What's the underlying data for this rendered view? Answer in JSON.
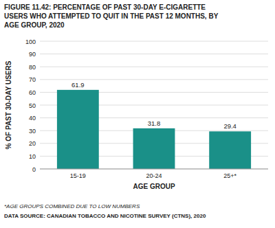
{
  "chart_data": {
    "type": "bar",
    "title": "FIGURE 11.42: PERCENTAGE OF PAST 30-DAY E-CIGARETTE\nUSERS WHO ATTEMPTED TO QUIT IN THE PAST 12 MONTHS, BY\nAGE GROUP, 2020",
    "categories": [
      "15-19",
      "20-24",
      "25+*"
    ],
    "values": [
      61.9,
      31.8,
      29.4
    ],
    "color": "#1a9088",
    "xlabel": "AGE GROUP",
    "ylabel": "% OF PAST 30-DAY USERS",
    "ylim": [
      0,
      100
    ],
    "yticks": [
      0,
      10,
      20,
      30,
      40,
      50,
      60,
      70,
      80,
      90,
      100
    ],
    "grid": true,
    "data_labels": true,
    "annotations": [
      "*AGE GROUPS COMBINED DUE TO LOW NUMBERS",
      "DATA SOURCE: CANADIAN TOBACCO AND NICOTINE SURVEY (CTNS), 2020"
    ]
  }
}
